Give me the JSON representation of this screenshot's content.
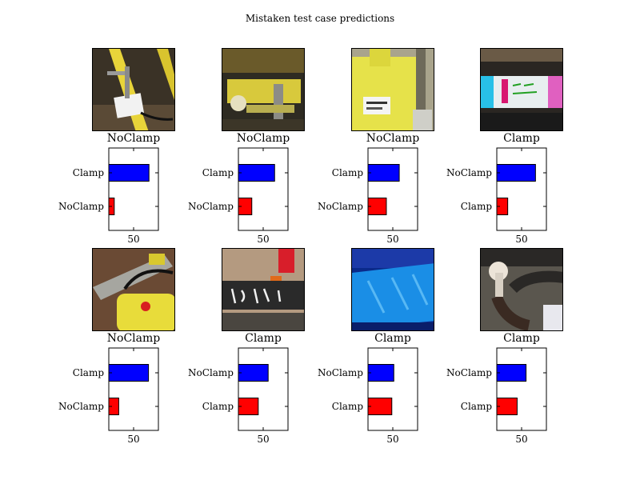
{
  "figure_title": "Mistaken test case predictions",
  "colors": {
    "first_bar": "#0000ff",
    "second_bar": "#ff0000"
  },
  "panels": [
    {
      "predicted_label": "NoClamp",
      "photo": "yellow-pipe-clamp-on-ground"
    },
    {
      "predicted_label": "NoClamp",
      "photo": "yellow-pipe-under-flange"
    },
    {
      "predicted_label": "NoClamp",
      "photo": "yellow-fitting-with-label"
    },
    {
      "predicted_label": "Clamp",
      "photo": "blue-white-fitting-handwriting"
    },
    {
      "predicted_label": "NoClamp",
      "photo": "yellow-fitting-in-dirt"
    },
    {
      "predicted_label": "Clamp",
      "photo": "black-pipe-handwriting"
    },
    {
      "predicted_label": "Clamp",
      "photo": "blue-wrapped-pipe"
    },
    {
      "predicted_label": "Clamp",
      "photo": "grey-valve-with-handle"
    }
  ],
  "chart_data": [
    {
      "type": "bar",
      "orientation": "horizontal",
      "categories": [
        "NoClamp",
        "Clamp"
      ],
      "values": [
        11,
        81
      ],
      "xticks": [
        50
      ],
      "xlim": [
        0,
        100
      ]
    },
    {
      "type": "bar",
      "orientation": "horizontal",
      "categories": [
        "NoClamp",
        "Clamp"
      ],
      "values": [
        27,
        73
      ],
      "xticks": [
        50
      ],
      "xlim": [
        0,
        100
      ]
    },
    {
      "type": "bar",
      "orientation": "horizontal",
      "categories": [
        "NoClamp",
        "Clamp"
      ],
      "values": [
        37,
        63
      ],
      "xticks": [
        50
      ],
      "xlim": [
        0,
        100
      ]
    },
    {
      "type": "bar",
      "orientation": "horizontal",
      "categories": [
        "Clamp",
        "NoClamp"
      ],
      "values": [
        22,
        78
      ],
      "xticks": [
        50
      ],
      "xlim": [
        0,
        100
      ]
    },
    {
      "type": "bar",
      "orientation": "horizontal",
      "categories": [
        "NoClamp",
        "Clamp"
      ],
      "values": [
        20,
        80
      ],
      "xticks": [
        50
      ],
      "xlim": [
        0,
        100
      ]
    },
    {
      "type": "bar",
      "orientation": "horizontal",
      "categories": [
        "Clamp",
        "NoClamp"
      ],
      "values": [
        40,
        60
      ],
      "xticks": [
        50
      ],
      "xlim": [
        0,
        100
      ]
    },
    {
      "type": "bar",
      "orientation": "horizontal",
      "categories": [
        "Clamp",
        "NoClamp"
      ],
      "values": [
        48,
        52
      ],
      "xticks": [
        50
      ],
      "xlim": [
        0,
        100
      ]
    },
    {
      "type": "bar",
      "orientation": "horizontal",
      "categories": [
        "Clamp",
        "NoClamp"
      ],
      "values": [
        41,
        59
      ],
      "xticks": [
        50
      ],
      "xlim": [
        0,
        100
      ]
    }
  ]
}
